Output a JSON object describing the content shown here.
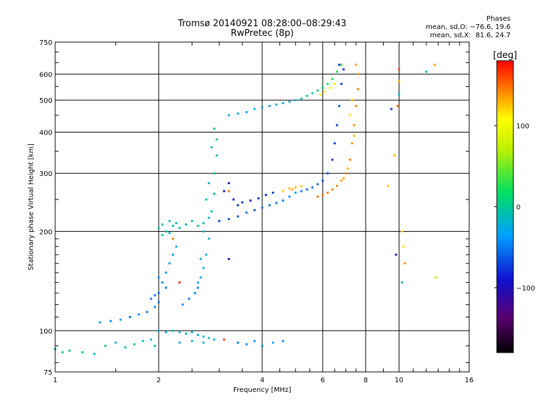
{
  "header": {
    "title": "Tromsø 20140921 08:28:00–08:29:43",
    "subtitle": "RwPretec (8p)"
  },
  "phases_box": {
    "heading": "Phases",
    "line_o": "mean, sd,O: −76.6, 19.6",
    "line_x": "mean, sd,X:  81.6, 24.7"
  },
  "colorbar": {
    "unit_label": "[deg]",
    "range": [
      -180,
      180
    ],
    "ticks": [
      100,
      0,
      -100
    ],
    "tick_labels": [
      "100",
      "0",
      "−100"
    ]
  },
  "chart_data": {
    "type": "scatter",
    "title": "Tromsø 20140921 08:28:00–08:29:43",
    "subtitle": "RwPretec (8p)",
    "xlabel": "Frequency [MHz]",
    "ylabel": "Stationary phase Virtual Height [km]",
    "x_scale": "log",
    "y_scale": "log",
    "xlim": [
      1,
      16
    ],
    "ylim": [
      75,
      750
    ],
    "x_ticks": [
      1,
      2,
      4,
      6,
      8,
      10,
      16
    ],
    "x_tick_labels": [
      "1",
      "2",
      "4",
      "6",
      "8",
      "10",
      "16"
    ],
    "y_ticks": [
      75,
      100,
      200,
      300,
      400,
      500,
      600,
      750
    ],
    "y_tick_labels": [
      "75",
      "100",
      "200",
      "300",
      "400",
      "500",
      "600",
      "750"
    ],
    "grid": true,
    "color_variable": "phase [deg]",
    "series": [
      {
        "points": [
          [
            1.0,
            88,
            -60
          ],
          [
            1.05,
            86,
            -55
          ],
          [
            1.1,
            87,
            -50
          ],
          [
            1.2,
            86,
            -45
          ],
          [
            1.3,
            85,
            -55
          ],
          [
            1.4,
            90,
            -50
          ],
          [
            1.5,
            92,
            -60
          ],
          [
            1.6,
            89,
            -55
          ],
          [
            1.7,
            91,
            -60
          ],
          [
            1.8,
            93,
            -55
          ],
          [
            1.9,
            94,
            -65
          ],
          [
            1.95,
            90,
            -50
          ]
        ]
      },
      {
        "points": [
          [
            1.35,
            106,
            -80
          ],
          [
            1.45,
            107,
            -85
          ],
          [
            1.55,
            108,
            -80
          ],
          [
            1.65,
            110,
            -90
          ],
          [
            1.75,
            112,
            -85
          ],
          [
            1.85,
            114,
            -90
          ],
          [
            1.95,
            118,
            -85
          ],
          [
            2.0,
            122,
            -90
          ],
          [
            1.9,
            125,
            -95
          ],
          [
            2.0,
            130,
            -90
          ],
          [
            2.05,
            140,
            -85
          ],
          [
            2.1,
            150,
            -80
          ],
          [
            2.15,
            160,
            -80
          ],
          [
            2.2,
            170,
            -75
          ],
          [
            2.25,
            180,
            -70
          ],
          [
            2.1,
            135,
            -90
          ],
          [
            2.0,
            145,
            -85
          ],
          [
            1.95,
            128,
            -90
          ]
        ]
      },
      {
        "points": [
          [
            2.0,
            100,
            -70
          ],
          [
            2.1,
            99,
            -65
          ],
          [
            2.2,
            100,
            -60
          ],
          [
            2.3,
            99,
            -70
          ],
          [
            2.4,
            98,
            -65
          ],
          [
            2.5,
            99,
            -60
          ],
          [
            2.6,
            97,
            -70
          ],
          [
            2.7,
            96,
            -65
          ],
          [
            2.8,
            95,
            -60
          ],
          [
            2.9,
            94,
            -70
          ],
          [
            2.3,
            92,
            -65
          ],
          [
            2.5,
            93,
            -70
          ],
          [
            2.7,
            92,
            -60
          ]
        ]
      },
      {
        "points": [
          [
            2.0,
            205,
            -55
          ],
          [
            2.05,
            210,
            -50
          ],
          [
            2.1,
            200,
            -55
          ],
          [
            2.15,
            215,
            -60
          ],
          [
            2.2,
            208,
            -55
          ],
          [
            2.25,
            212,
            -50
          ],
          [
            2.3,
            205,
            -55
          ],
          [
            2.4,
            210,
            -60
          ],
          [
            2.5,
            215,
            -55
          ],
          [
            2.6,
            208,
            -50
          ],
          [
            2.7,
            212,
            -55
          ],
          [
            2.8,
            220,
            -60
          ],
          [
            2.05,
            195,
            -50
          ],
          [
            2.15,
            198,
            -55
          ]
        ]
      },
      {
        "points": [
          [
            2.35,
            120,
            -85
          ],
          [
            2.45,
            125,
            -90
          ],
          [
            2.55,
            130,
            -85
          ],
          [
            2.6,
            135,
            -90
          ],
          [
            2.65,
            145,
            -80
          ],
          [
            2.7,
            155,
            -70
          ],
          [
            2.75,
            170,
            -65
          ],
          [
            2.8,
            190,
            -60
          ],
          [
            2.85,
            230,
            -55
          ],
          [
            2.9,
            260,
            -55
          ],
          [
            2.9,
            300,
            -50
          ],
          [
            2.95,
            340,
            -55
          ],
          [
            2.95,
            380,
            -50
          ],
          [
            2.9,
            410,
            -55
          ],
          [
            2.85,
            360,
            -55
          ],
          [
            2.8,
            280,
            -60
          ],
          [
            2.75,
            250,
            -55
          ],
          [
            2.7,
            200,
            -60
          ],
          [
            2.65,
            165,
            -65
          ],
          [
            2.6,
            140,
            -80
          ]
        ]
      },
      {
        "points": [
          [
            3.0,
            215,
            -105
          ],
          [
            3.2,
            218,
            -100
          ],
          [
            3.4,
            222,
            -100
          ],
          [
            3.6,
            228,
            -95
          ],
          [
            3.8,
            232,
            -100
          ],
          [
            4.0,
            236,
            -95
          ],
          [
            4.2,
            240,
            -95
          ],
          [
            4.4,
            244,
            -90
          ],
          [
            4.6,
            248,
            -90
          ],
          [
            4.8,
            255,
            -85
          ],
          [
            5.0,
            262,
            -80
          ],
          [
            5.2,
            265,
            -90
          ],
          [
            5.4,
            268,
            -95
          ],
          [
            5.6,
            272,
            -90
          ],
          [
            5.8,
            278,
            -95
          ],
          [
            6.0,
            285,
            -100
          ],
          [
            6.2,
            300,
            -105
          ],
          [
            6.4,
            330,
            -110
          ],
          [
            6.5,
            370,
            -110
          ],
          [
            6.6,
            420,
            -105
          ],
          [
            6.7,
            480,
            -100
          ],
          [
            6.8,
            560,
            -110
          ],
          [
            6.9,
            620,
            -115
          ],
          [
            6.7,
            640,
            -110
          ]
        ]
      },
      {
        "points": [
          [
            3.1,
            265,
            -120
          ],
          [
            3.3,
            250,
            -115
          ],
          [
            3.5,
            245,
            -110
          ],
          [
            3.7,
            248,
            -115
          ],
          [
            3.9,
            252,
            -110
          ],
          [
            4.1,
            258,
            -115
          ],
          [
            4.3,
            262,
            -110
          ],
          [
            3.2,
            280,
            -125
          ],
          [
            3.4,
            240,
            -110
          ]
        ]
      },
      {
        "points": [
          [
            4.6,
            265,
            90
          ],
          [
            4.8,
            270,
            95
          ],
          [
            5.0,
            272,
            100
          ],
          [
            5.2,
            274,
            95
          ],
          [
            4.9,
            268,
            105
          ]
        ]
      },
      {
        "points": [
          [
            5.8,
            255,
            125
          ],
          [
            6.0,
            258,
            120
          ],
          [
            6.2,
            262,
            125
          ],
          [
            6.4,
            268,
            120
          ],
          [
            6.6,
            275,
            115
          ],
          [
            6.8,
            285,
            110
          ],
          [
            7.0,
            300,
            115
          ],
          [
            7.2,
            330,
            120
          ],
          [
            7.3,
            370,
            115
          ],
          [
            7.4,
            420,
            110
          ],
          [
            7.5,
            480,
            120
          ],
          [
            7.6,
            540,
            125
          ],
          [
            7.6,
            600,
            110
          ],
          [
            7.5,
            640,
            105
          ],
          [
            7.3,
            500,
            90
          ],
          [
            7.2,
            450,
            85
          ],
          [
            7.4,
            390,
            95
          ],
          [
            7.1,
            310,
            100
          ],
          [
            6.9,
            290,
            105
          ]
        ]
      },
      {
        "points": [
          [
            3.2,
            450,
            -75
          ],
          [
            3.4,
            455,
            -70
          ],
          [
            3.6,
            460,
            -75
          ],
          [
            3.8,
            470,
            -70
          ],
          [
            4.0,
            475,
            -75
          ],
          [
            4.2,
            480,
            -70
          ],
          [
            4.4,
            485,
            -65
          ],
          [
            4.6,
            490,
            -70
          ],
          [
            4.8,
            495,
            -65
          ],
          [
            5.0,
            500,
            -60
          ],
          [
            5.2,
            505,
            -55
          ],
          [
            5.4,
            515,
            -50
          ],
          [
            5.6,
            525,
            -45
          ],
          [
            5.8,
            535,
            -40
          ],
          [
            6.0,
            545,
            -35
          ],
          [
            6.2,
            560,
            -30
          ],
          [
            6.4,
            580,
            -25
          ],
          [
            6.6,
            610,
            -20
          ],
          [
            6.8,
            640,
            -15
          ],
          [
            5.9,
            520,
            65
          ],
          [
            6.1,
            530,
            70
          ],
          [
            6.3,
            545,
            65
          ],
          [
            6.5,
            560,
            60
          ]
        ]
      },
      {
        "points": [
          [
            3.4,
            92,
            -90
          ],
          [
            3.6,
            91,
            -85
          ],
          [
            3.8,
            93,
            -80
          ],
          [
            4.0,
            90,
            -85
          ],
          [
            4.3,
            92,
            -80
          ],
          [
            4.6,
            93,
            -85
          ],
          [
            3.2,
            165,
            -120
          ],
          [
            3.2,
            265,
            130
          ],
          [
            2.3,
            140,
            160
          ],
          [
            2.2,
            190,
            120
          ],
          [
            3.1,
            94,
            150
          ]
        ]
      },
      {
        "points": [
          [
            9.5,
            470,
            -110
          ],
          [
            9.7,
            340,
            100
          ],
          [
            9.9,
            480,
            130
          ],
          [
            10.0,
            520,
            -60
          ],
          [
            10.0,
            570,
            100
          ],
          [
            10.0,
            620,
            150
          ],
          [
            10.2,
            200,
            90
          ],
          [
            10.3,
            180,
            80
          ],
          [
            10.4,
            160,
            110
          ],
          [
            10.2,
            140,
            -50
          ],
          [
            9.8,
            170,
            -120
          ],
          [
            9.3,
            275,
            90
          ],
          [
            12.0,
            610,
            -60
          ],
          [
            12.7,
            640,
            110
          ],
          [
            12.8,
            145,
            40
          ]
        ]
      }
    ]
  }
}
